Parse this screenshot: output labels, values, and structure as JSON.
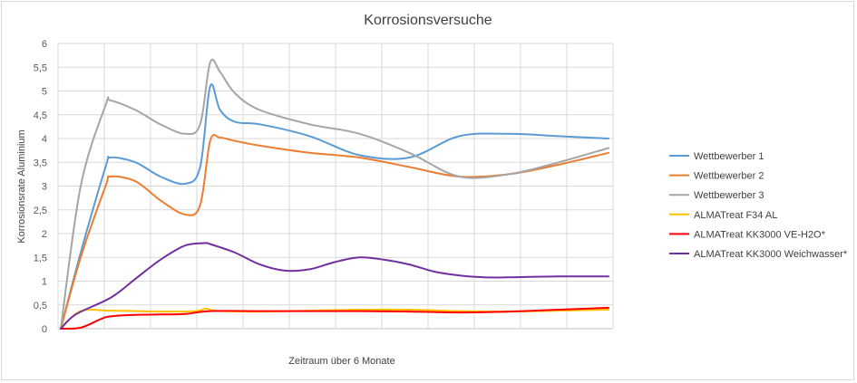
{
  "chart_data": {
    "type": "line",
    "title": "Korrosionsversuche",
    "xlabel": "Zeitraum über 6 Monate",
    "ylabel": "Korrosionsrate Aluminium",
    "ylim": [
      0,
      6
    ],
    "y_ticks": [
      "0",
      "0,5",
      "1",
      "1,5",
      "2",
      "2,5",
      "3",
      "3,5",
      "4",
      "4,5",
      "5",
      "5,5",
      "6"
    ],
    "x_categories": 12,
    "grid": "vertical and horizontal",
    "legend_position": "right",
    "series": [
      {
        "name": "Wettbewerber 1",
        "color": "#5b9bd5",
        "x": [
          0,
          0.4,
          0.9,
          1,
          1.5,
          2,
          2.5,
          2.8,
          3,
          3.2,
          3.5,
          4,
          5,
          6,
          7,
          8,
          9,
          10,
          11
        ],
        "y": [
          0,
          1.6,
          3.4,
          3.6,
          3.5,
          3.2,
          3.05,
          3.4,
          5.1,
          4.6,
          4.35,
          4.3,
          4.05,
          3.65,
          3.6,
          4.05,
          4.1,
          4.05,
          4.0
        ]
      },
      {
        "name": "Wettbewerber 2",
        "color": "#ed7d31",
        "x": [
          0,
          0.4,
          0.9,
          1,
          1.5,
          2,
          2.5,
          2.8,
          3,
          3.2,
          3.5,
          4,
          5,
          6,
          7,
          8,
          9,
          10,
          11
        ],
        "y": [
          0,
          1.5,
          3.0,
          3.2,
          3.1,
          2.7,
          2.4,
          2.6,
          3.95,
          4.02,
          3.95,
          3.85,
          3.7,
          3.6,
          3.4,
          3.2,
          3.25,
          3.45,
          3.7
        ]
      },
      {
        "name": "Wettbewerber 3",
        "color": "#a5a5a5",
        "x": [
          0,
          0.4,
          0.9,
          1,
          1.5,
          2,
          2.5,
          2.8,
          3,
          3.2,
          3.5,
          4,
          5,
          6,
          7,
          8,
          9,
          10,
          11
        ],
        "y": [
          0,
          3.0,
          4.7,
          4.8,
          4.6,
          4.3,
          4.1,
          4.3,
          5.6,
          5.4,
          4.95,
          4.6,
          4.3,
          4.1,
          3.7,
          3.2,
          3.25,
          3.5,
          3.8
        ]
      },
      {
        "name": "ALMATreat F34 AL",
        "color": "#ffc000",
        "x": [
          0,
          0.4,
          1,
          2,
          2.7,
          2.9,
          3,
          3.2,
          4,
          5,
          6,
          7,
          8,
          9,
          10,
          11
        ],
        "y": [
          0,
          0.37,
          0.38,
          0.36,
          0.37,
          0.42,
          0.4,
          0.37,
          0.36,
          0.38,
          0.4,
          0.4,
          0.37,
          0.36,
          0.38,
          0.4
        ]
      },
      {
        "name": "ALMATreat KK3000 VE-H2O*",
        "color": "#ff0000",
        "x": [
          0,
          0.4,
          0.8,
          1,
          1.5,
          2,
          2.5,
          3,
          4,
          5,
          6,
          7,
          8,
          9,
          10,
          11
        ],
        "y": [
          0,
          0.02,
          0.2,
          0.26,
          0.29,
          0.3,
          0.31,
          0.37,
          0.37,
          0.37,
          0.37,
          0.36,
          0.34,
          0.36,
          0.4,
          0.44
        ]
      },
      {
        "name": "ALMATreat KK3000 Weichwasser*",
        "color": "#7030a0",
        "x": [
          0,
          0.3,
          1,
          1.5,
          2,
          2.5,
          2.9,
          3,
          3.5,
          4,
          4.5,
          5,
          5.5,
          6,
          6.5,
          7,
          7.5,
          8,
          8.5,
          9,
          10,
          11
        ],
        "y": [
          0,
          0.3,
          0.65,
          1.05,
          1.45,
          1.75,
          1.8,
          1.78,
          1.6,
          1.35,
          1.22,
          1.25,
          1.4,
          1.5,
          1.45,
          1.35,
          1.2,
          1.12,
          1.08,
          1.08,
          1.1,
          1.1
        ]
      }
    ]
  }
}
